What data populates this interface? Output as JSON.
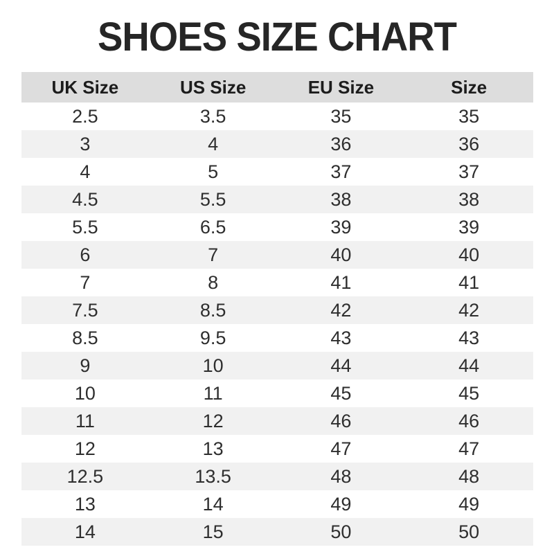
{
  "page": {
    "title": "SHOES SIZE CHART"
  },
  "colors": {
    "background": "#ffffff",
    "title_text": "#262626",
    "header_bg": "#dddddd",
    "row_alt_bg": "#f1f1f1",
    "cell_text": "#2e2e2e"
  },
  "chart_data": {
    "type": "table",
    "title": "SHOES SIZE CHART",
    "columns": [
      "UK Size",
      "US Size",
      "EU Size",
      "Size"
    ],
    "rows": [
      [
        "2.5",
        "3.5",
        "35",
        "35"
      ],
      [
        "3",
        "4",
        "36",
        "36"
      ],
      [
        "4",
        "5",
        "37",
        "37"
      ],
      [
        "4.5",
        "5.5",
        "38",
        "38"
      ],
      [
        "5.5",
        "6.5",
        "39",
        "39"
      ],
      [
        "6",
        "7",
        "40",
        "40"
      ],
      [
        "7",
        "8",
        "41",
        "41"
      ],
      [
        "7.5",
        "8.5",
        "42",
        "42"
      ],
      [
        "8.5",
        "9.5",
        "43",
        "43"
      ],
      [
        "9",
        "10",
        "44",
        "44"
      ],
      [
        "10",
        "11",
        "45",
        "45"
      ],
      [
        "11",
        "12",
        "46",
        "46"
      ],
      [
        "12",
        "13",
        "47",
        "47"
      ],
      [
        "12.5",
        "13.5",
        "48",
        "48"
      ],
      [
        "13",
        "14",
        "49",
        "49"
      ],
      [
        "14",
        "15",
        "50",
        "50"
      ]
    ]
  }
}
